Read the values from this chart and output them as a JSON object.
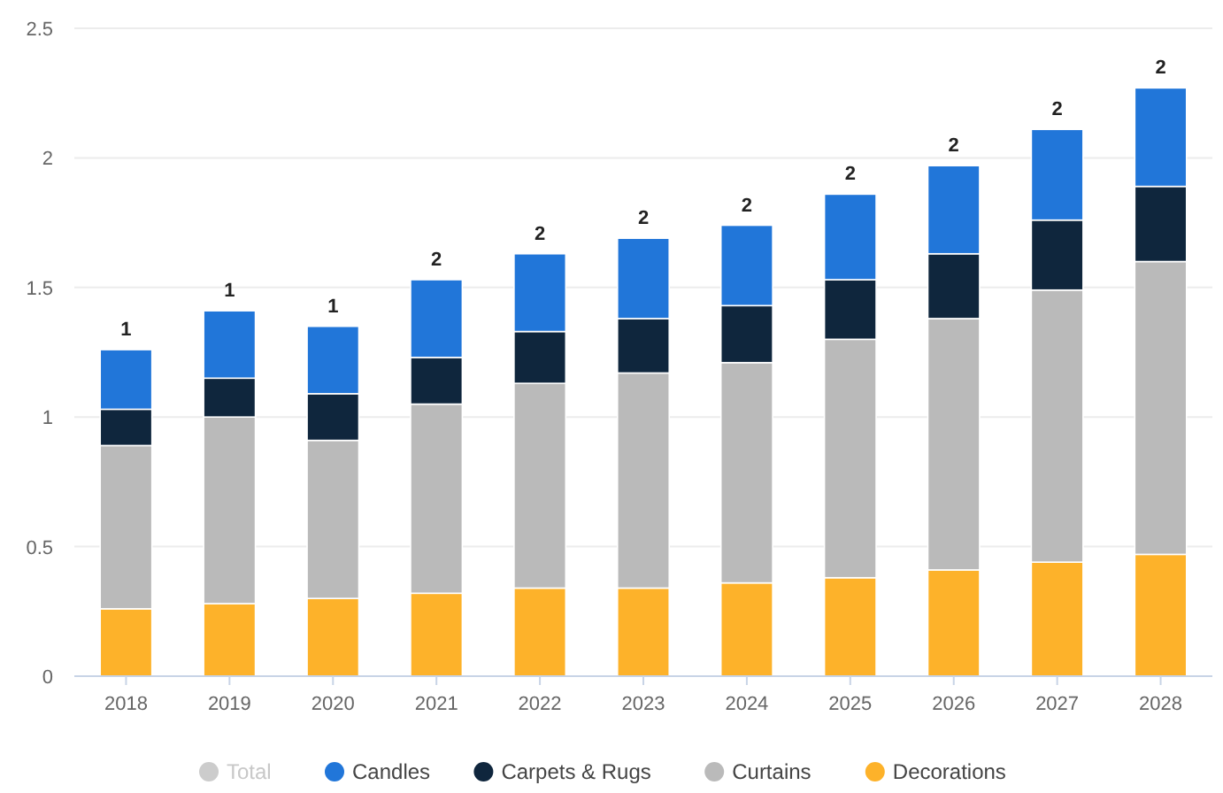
{
  "chart_data": {
    "type": "bar",
    "stacked": true,
    "categories": [
      "2018",
      "2019",
      "2020",
      "2021",
      "2022",
      "2023",
      "2024",
      "2025",
      "2026",
      "2027",
      "2028"
    ],
    "series": [
      {
        "name": "Decorations",
        "color": "#fdb22a",
        "values": [
          0.26,
          0.28,
          0.3,
          0.32,
          0.34,
          0.34,
          0.36,
          0.38,
          0.41,
          0.44,
          0.47
        ]
      },
      {
        "name": "Curtains",
        "color": "#bababa",
        "values": [
          0.63,
          0.72,
          0.61,
          0.73,
          0.79,
          0.83,
          0.85,
          0.92,
          0.97,
          1.05,
          1.13
        ]
      },
      {
        "name": "Carpets & Rugs",
        "color": "#0f263d",
        "values": [
          0.14,
          0.15,
          0.18,
          0.18,
          0.2,
          0.21,
          0.22,
          0.23,
          0.25,
          0.27,
          0.29
        ]
      },
      {
        "name": "Candles",
        "color": "#2176d9",
        "values": [
          0.23,
          0.26,
          0.26,
          0.3,
          0.3,
          0.31,
          0.31,
          0.33,
          0.34,
          0.35,
          0.38
        ]
      },
      {
        "name": "Total",
        "color": "#cccccc",
        "values": [
          null,
          null,
          null,
          null,
          null,
          null,
          null,
          null,
          null,
          null,
          null
        ]
      }
    ],
    "totals": [
      "1",
      "1",
      "1",
      "2",
      "2",
      "2",
      "2",
      "2",
      "2",
      "2",
      "2"
    ],
    "ylim": [
      0,
      2.5
    ],
    "yticks": [
      0,
      0.5,
      1,
      1.5,
      2,
      2.5
    ],
    "grid": "y",
    "legend": "bottom"
  }
}
